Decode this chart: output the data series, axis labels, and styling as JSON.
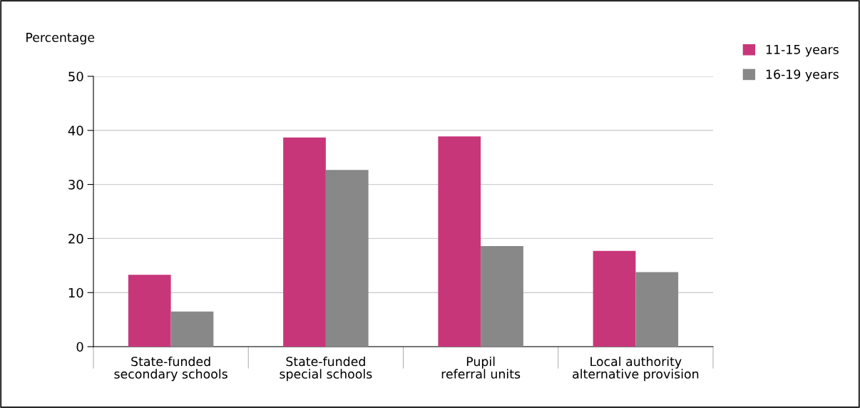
{
  "chart_data": {
    "type": "bar",
    "ylabel": "Percentage",
    "categories": [
      "State-funded\nsecondary schools",
      "State-funded\nspecial schools",
      "Pupil\nreferral units",
      "Local authority\nalternative provision"
    ],
    "series": [
      {
        "name": "11-15 years",
        "color": "#c8367a",
        "values": [
          13.3,
          38.7,
          38.9,
          17.7
        ]
      },
      {
        "name": "16-19 years",
        "color": "#888888",
        "values": [
          6.5,
          32.7,
          18.6,
          13.8
        ]
      }
    ],
    "ylim": [
      0,
      50
    ],
    "yticks": [
      0,
      10,
      20,
      30,
      40,
      50
    ],
    "grid": "y",
    "legend": "top right"
  }
}
